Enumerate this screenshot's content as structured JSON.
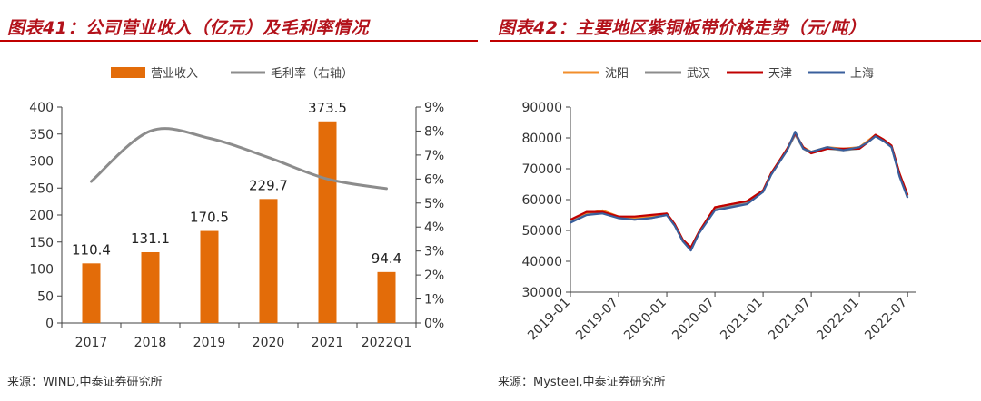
{
  "left": {
    "title": "图表41：公司营业收入（亿元）及毛利率情况",
    "source": "来源：WIND,中泰证券研究所",
    "colors": {
      "bar": "#e36c09",
      "line": "#8c8c8c",
      "axis": "#404040",
      "accent": "#c00000"
    },
    "chart_data": {
      "type": "bar",
      "categories": [
        "2017",
        "2018",
        "2019",
        "2020",
        "2021",
        "2022Q1"
      ],
      "series": [
        {
          "name": "营业收入",
          "type": "bar",
          "axis": "left",
          "values": [
            110.4,
            131.1,
            170.5,
            229.7,
            373.5,
            94.4
          ]
        },
        {
          "name": "毛利率（右轴）",
          "type": "line",
          "axis": "right",
          "smooth": true,
          "values": [
            5.9,
            8.0,
            7.7,
            6.9,
            6.0,
            5.6
          ]
        }
      ],
      "data_labels": [
        "110.4",
        "131.1",
        "170.5",
        "229.7",
        "373.5",
        "94.4"
      ],
      "y_left": {
        "min": 0,
        "max": 400,
        "ticks": [
          "0",
          "50",
          "100",
          "150",
          "200",
          "250",
          "300",
          "350",
          "400"
        ]
      },
      "y_right": {
        "min": 0,
        "max": 9,
        "unit": "%",
        "ticks": [
          "0%",
          "1%",
          "2%",
          "3%",
          "4%",
          "5%",
          "6%",
          "7%",
          "8%",
          "9%"
        ]
      },
      "legend_position": "top"
    }
  },
  "right": {
    "title": "图表42：主要地区紫铜板带价格走势（元/吨）",
    "source": "来源：Mysteel,中泰证券研究所",
    "colors": {
      "沈阳": "#f28e2b",
      "武汉": "#8c8c8c",
      "天津": "#c00000",
      "上海": "#3a5f9c",
      "axis": "#404040"
    },
    "chart_data": {
      "type": "line",
      "x_tick_labels": [
        "2019-01",
        "2019-07",
        "2020-01",
        "2020-07",
        "2021-01",
        "2021-07",
        "2022-01",
        "2022-07"
      ],
      "y": {
        "min": 30000,
        "max": 90000,
        "ticks": [
          "30000",
          "40000",
          "50000",
          "60000",
          "70000",
          "80000",
          "90000"
        ]
      },
      "x": [
        "2019-01",
        "2019-03",
        "2019-05",
        "2019-07",
        "2019-09",
        "2019-11",
        "2020-01",
        "2020-02",
        "2020-03",
        "2020-04",
        "2020-05",
        "2020-07",
        "2020-09",
        "2020-11",
        "2021-01",
        "2021-02",
        "2021-03",
        "2021-04",
        "2021-05",
        "2021-06",
        "2021-07",
        "2021-09",
        "2021-11",
        "2022-01",
        "2022-02",
        "2022-03",
        "2022-04",
        "2022-05",
        "2022-06",
        "2022-07"
      ],
      "series": [
        {
          "name": "沈阳",
          "values": [
            53000,
            55500,
            56500,
            54500,
            54000,
            54500,
            55500,
            52000,
            47000,
            44500,
            49500,
            57500,
            58500,
            59500,
            63000,
            68500,
            72500,
            76500,
            81500,
            77000,
            75500,
            77000,
            76500,
            77000,
            79000,
            81000,
            79500,
            77500,
            68500,
            61500
          ]
        },
        {
          "name": "武汉",
          "values": [
            53000,
            55000,
            56000,
            54000,
            53500,
            54000,
            55000,
            51500,
            46500,
            44000,
            49000,
            57000,
            58000,
            59000,
            62500,
            68000,
            72000,
            76000,
            81000,
            76500,
            75000,
            76500,
            76000,
            76500,
            78500,
            80500,
            79000,
            77000,
            68000,
            61000
          ]
        },
        {
          "name": "天津",
          "values": [
            53500,
            56000,
            56000,
            54500,
            54500,
            55000,
            55500,
            52000,
            47000,
            44500,
            49500,
            57500,
            58500,
            59500,
            63000,
            68500,
            72500,
            76500,
            81500,
            77000,
            75000,
            76500,
            76500,
            76500,
            78500,
            81000,
            79500,
            77500,
            68500,
            61500
          ]
        },
        {
          "name": "上海",
          "values": [
            52500,
            55000,
            55500,
            54000,
            53500,
            54000,
            55000,
            51500,
            46500,
            43500,
            49000,
            56500,
            57500,
            58500,
            62500,
            68000,
            72000,
            76000,
            82000,
            76500,
            75500,
            77000,
            76000,
            77000,
            78500,
            80500,
            79000,
            77000,
            67500,
            60500
          ]
        }
      ],
      "legend_position": "top"
    }
  }
}
